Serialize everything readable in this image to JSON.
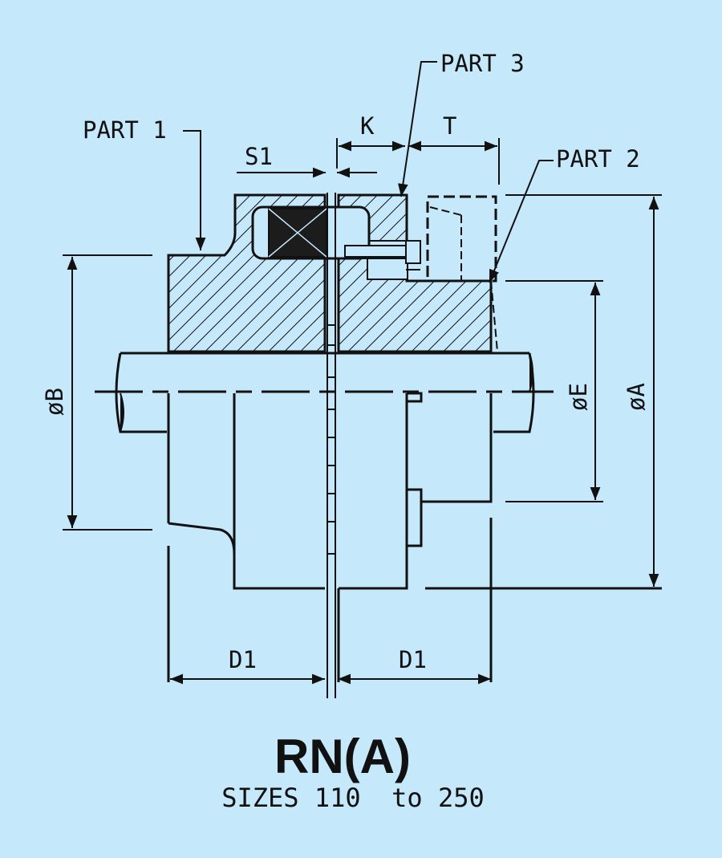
{
  "diagram": {
    "title": "RN(A)",
    "subtitle": "SIZES 110  to 250",
    "labels": {
      "part1": "PART 1",
      "part2": "PART 2",
      "part3": "PART 3",
      "s1": "S1",
      "k": "K",
      "t": "T",
      "d1_left": "D1",
      "d1_right": "D1",
      "dia_b": "øB",
      "dia_e": "øE",
      "dia_a": "øA"
    },
    "colors": {
      "background": "#c5e8fb",
      "line": "#111111",
      "element_fill": "#1c1c1c"
    }
  }
}
